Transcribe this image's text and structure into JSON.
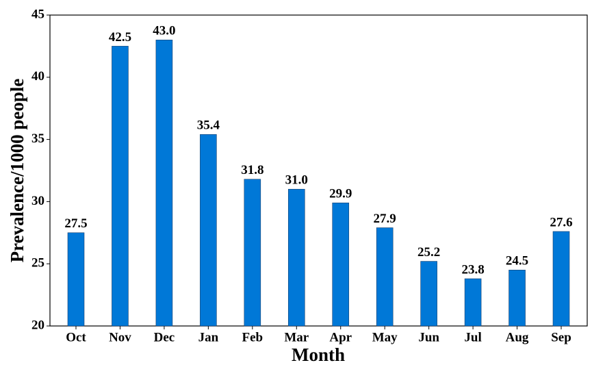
{
  "chart_data": {
    "type": "bar",
    "x_label": "Month",
    "y_label": "Prevalence/1000 people",
    "categories": [
      "Oct",
      "Nov",
      "Dec",
      "Jan",
      "Feb",
      "Mar",
      "Apr",
      "May",
      "Jun",
      "Jul",
      "Aug",
      "Sep"
    ],
    "values": [
      27.5,
      42.5,
      43.0,
      35.4,
      31.8,
      31.0,
      29.9,
      27.9,
      25.2,
      23.8,
      24.5,
      27.6
    ],
    "value_labels": [
      "27.5",
      "42.5",
      "43.0",
      "35.4",
      "31.8",
      "31.0",
      "29.9",
      "27.9",
      "25.2",
      "23.8",
      "24.5",
      "27.6"
    ],
    "color": "#0078d7",
    "ylim": [
      20,
      45
    ],
    "yticks": [
      20,
      25,
      30,
      35,
      40,
      45
    ],
    "grid": false
  }
}
